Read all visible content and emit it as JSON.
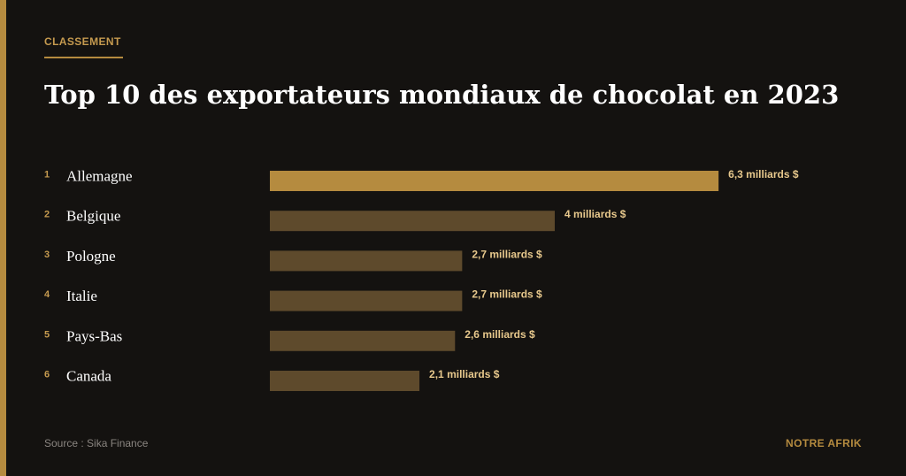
{
  "header": {
    "kicker": "CLASSEMENT",
    "title": "Top 10 des exportateurs mondiaux de chocolat en 2023"
  },
  "colors": {
    "background": "#141210",
    "accent": "#b58b3f",
    "highlight_bar": "#b58b3f",
    "bar": "#5e4a2c",
    "value_text": "#e7c88c",
    "country_text": "#ffffff",
    "rank_text": "#c59a4f"
  },
  "chart_data": {
    "type": "bar",
    "orientation": "horizontal",
    "ranks": [
      "1",
      "2",
      "3",
      "4",
      "5",
      "6"
    ],
    "categories": [
      "Allemagne",
      "Belgique",
      "Pologne",
      "Italie",
      "Pays-Bas",
      "Canada"
    ],
    "values": [
      6.3,
      4.0,
      2.7,
      2.7,
      2.6,
      2.1
    ],
    "value_labels": [
      "6,3 milliards $",
      "4 milliards $",
      "2,7 milliards $",
      "2,7 milliards $",
      "2,6 milliards $",
      "2,1 milliards $"
    ],
    "unit": "milliards $",
    "grid": false,
    "legend": "none"
  },
  "footer": {
    "source": "Source : Sika Finance",
    "brand": "NOTRE AFRIK"
  }
}
